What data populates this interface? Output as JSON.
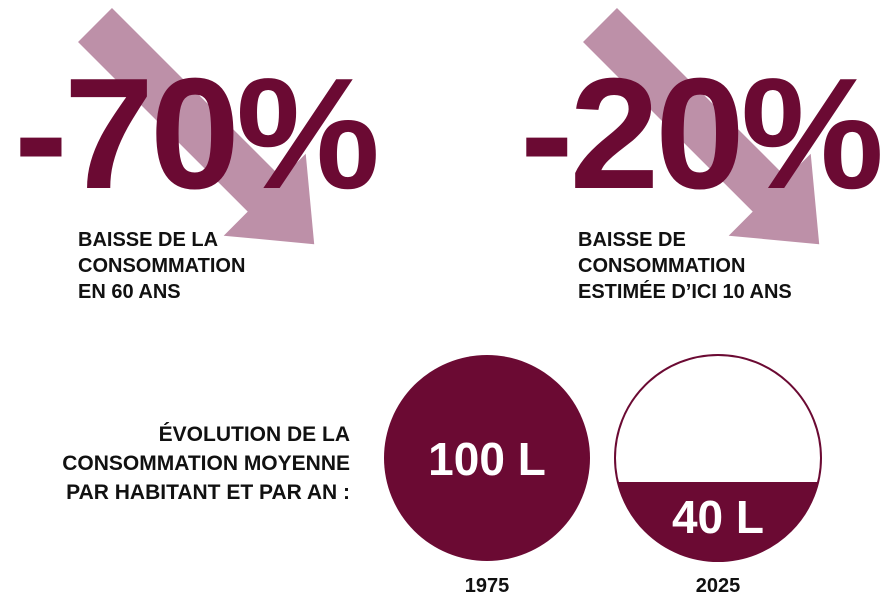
{
  "stats": [
    {
      "value": "-70%",
      "caption": [
        "BAISSE DE LA",
        "CONSOMMATION",
        "EN 60 ANS"
      ]
    },
    {
      "value": "-20%",
      "caption": [
        "BAISSE DE",
        "CONSOMMATION",
        "ESTIMÉE D’ICI 10 ANS"
      ]
    }
  ],
  "evolution": {
    "label": [
      "ÉVOLUTION DE LA",
      "CONSOMMATION MOYENNE",
      "PAR HABITANT ET PAR AN :"
    ],
    "circles": [
      {
        "value": "100 L",
        "year": "1975"
      },
      {
        "value": "40 L",
        "year": "2025"
      }
    ]
  }
}
